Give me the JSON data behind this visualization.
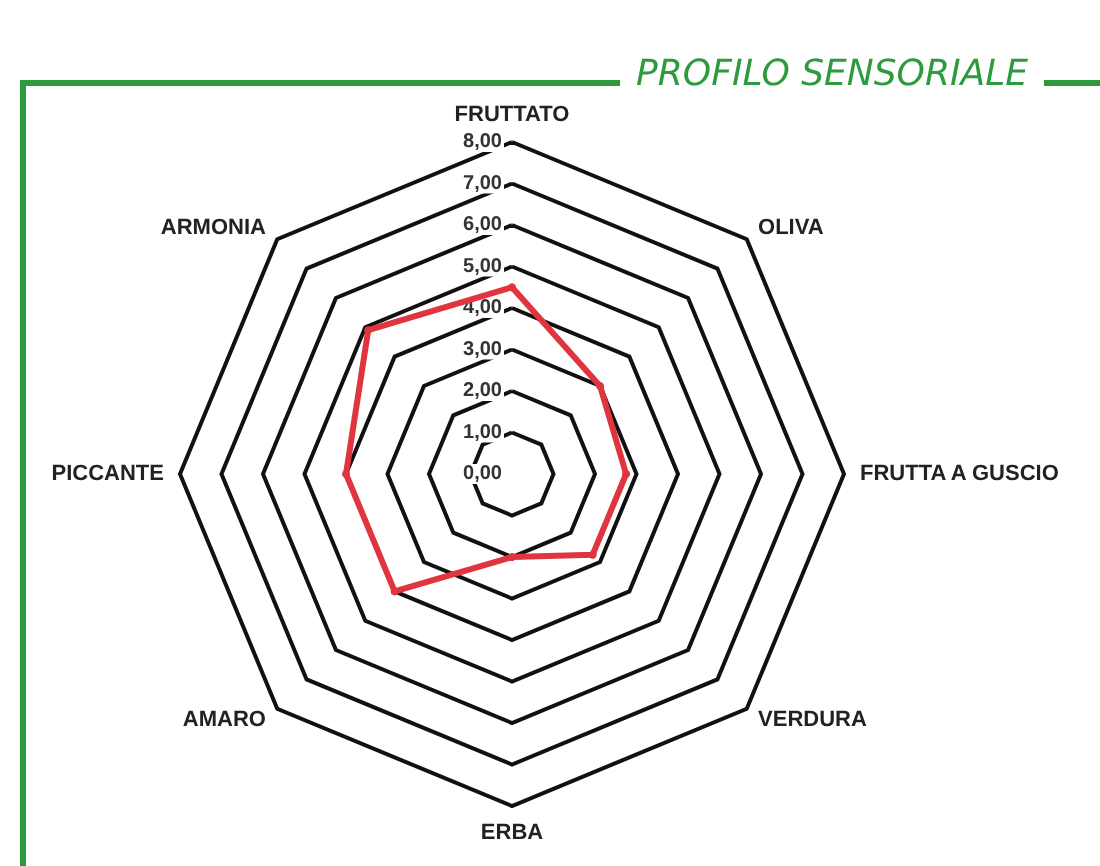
{
  "chart_data": {
    "type": "radar",
    "title": "PROFILO SENSORIALE",
    "categories": [
      "FRUTTATO",
      "OLIVA",
      "FRUTTA A GUSCIO",
      "VERDURA",
      "ERBA",
      "AMARO",
      "PICCANTE",
      "ARMONIA"
    ],
    "series": [
      {
        "color": "#e0353f",
        "values": [
          4.5,
          3.0,
          2.75,
          2.75,
          2.0,
          4.0,
          4.0,
          4.9
        ]
      }
    ],
    "ylim": [
      0,
      8
    ],
    "yticks": [
      {
        "value": 0,
        "label": "0,00"
      },
      {
        "value": 1,
        "label": "1,00"
      },
      {
        "value": 2,
        "label": "2,00"
      },
      {
        "value": 3,
        "label": "3,00"
      },
      {
        "value": 4,
        "label": "4,00"
      },
      {
        "value": 5,
        "label": "5,00"
      },
      {
        "value": 6,
        "label": "6,00"
      },
      {
        "value": 7,
        "label": "7,00"
      },
      {
        "value": 8,
        "label": "8,00"
      }
    ],
    "grid": true,
    "marker": "circle"
  }
}
